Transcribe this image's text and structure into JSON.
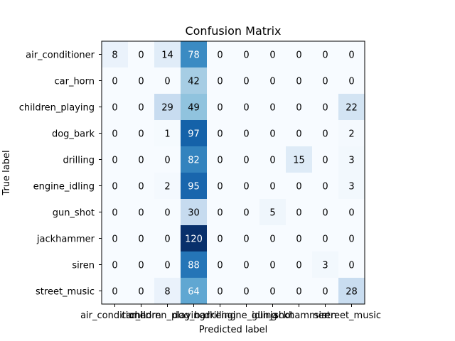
{
  "chart_data": {
    "type": "heatmap",
    "title": "Confusion Matrix",
    "xlabel": "Predicted label",
    "ylabel": "True label",
    "colormap": "Blues",
    "text_colors": {
      "dark_bg": "#ffffff",
      "light_bg": "#000000"
    },
    "classes": [
      "air_conditioner",
      "car_horn",
      "children_playing",
      "dog_bark",
      "drilling",
      "engine_idling",
      "gun_shot",
      "jackhammer",
      "siren",
      "street_music"
    ],
    "matrix": [
      [
        8,
        0,
        14,
        78,
        0,
        0,
        0,
        0,
        0,
        0
      ],
      [
        0,
        0,
        0,
        42,
        0,
        0,
        0,
        0,
        0,
        0
      ],
      [
        0,
        0,
        29,
        49,
        0,
        0,
        0,
        0,
        0,
        22
      ],
      [
        0,
        0,
        1,
        97,
        0,
        0,
        0,
        0,
        0,
        2
      ],
      [
        0,
        0,
        0,
        82,
        0,
        0,
        0,
        15,
        0,
        3
      ],
      [
        0,
        0,
        2,
        95,
        0,
        0,
        0,
        0,
        0,
        3
      ],
      [
        0,
        0,
        0,
        30,
        0,
        0,
        5,
        0,
        0,
        0
      ],
      [
        0,
        0,
        0,
        120,
        0,
        0,
        0,
        0,
        0,
        0
      ],
      [
        0,
        0,
        0,
        88,
        0,
        0,
        0,
        0,
        3,
        0
      ],
      [
        0,
        0,
        8,
        64,
        0,
        0,
        0,
        0,
        0,
        28
      ]
    ],
    "value_range": [
      0,
      120
    ]
  }
}
